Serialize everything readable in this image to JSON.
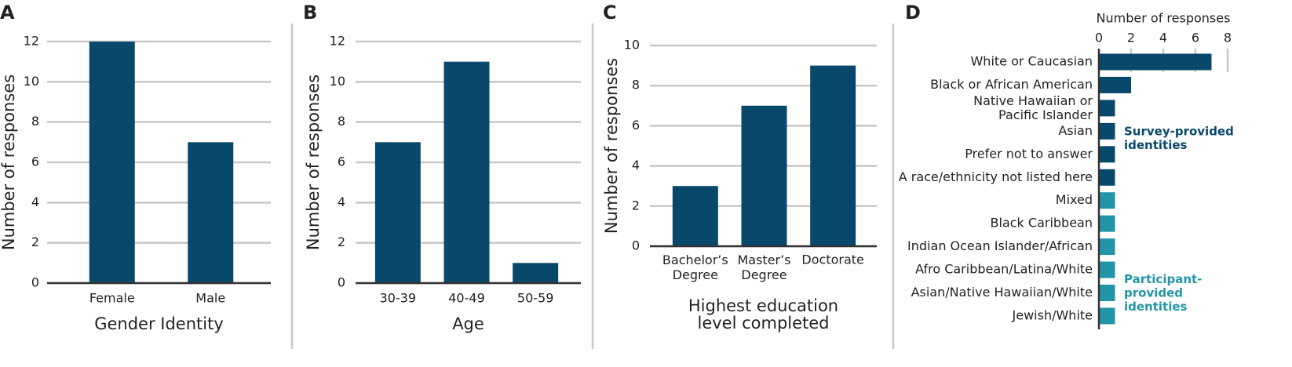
{
  "chart_data": [
    {
      "type": "bar",
      "panel": "A",
      "categories": [
        "Female",
        "Male"
      ],
      "values": [
        12,
        7
      ],
      "color": "#08486a",
      "ylim": [
        0,
        12
      ],
      "yticks": [
        0,
        2,
        4,
        6,
        8,
        10,
        12
      ],
      "ylabel": "Number of responses",
      "xlabel": "Gender Identity",
      "grid": true
    },
    {
      "type": "bar",
      "panel": "B",
      "categories": [
        "30-39",
        "40-49",
        "50-59"
      ],
      "values": [
        7,
        11,
        1
      ],
      "color": "#08486a",
      "ylim": [
        0,
        12
      ],
      "yticks": [
        0,
        2,
        4,
        6,
        8,
        10,
        12
      ],
      "ylabel": "Number of responses",
      "xlabel": "Age",
      "grid": true
    },
    {
      "type": "bar",
      "panel": "C",
      "categories": [
        "Bachelor’s\nDegree",
        "Master’s\nDegree",
        "Doctorate"
      ],
      "values": [
        3,
        7,
        9
      ],
      "color": "#08486a",
      "ylim": [
        0,
        10
      ],
      "yticks": [
        0,
        2,
        4,
        6,
        8,
        10
      ],
      "ylabel": "Number of responses",
      "xlabel": "Highest education\nlevel completed",
      "grid": true
    },
    {
      "type": "barh",
      "panel": "D",
      "xlabel": "Number of responses",
      "xlim": [
        0,
        8
      ],
      "xticks": [
        0,
        2,
        4,
        6,
        8
      ],
      "categories": [
        "White or Caucasian",
        "Black or African American",
        "Native Hawaiian or\nPacific Islander",
        "Asian",
        "Prefer not to answer",
        "A race/ethnicity not listed here",
        "Mixed",
        "Black Caribbean",
        "Indian Ocean Islander/African",
        "Afro Caribbean/Latina/White",
        "Asian/Native Hawaiian/White",
        "Jewish/White"
      ],
      "series": [
        {
          "name": "Survey-provided\nidentities",
          "color": "#08486a",
          "values": [
            7,
            2,
            1,
            1,
            1,
            1,
            null,
            null,
            null,
            null,
            null,
            null
          ]
        },
        {
          "name": "Participant-\nprovided\nidentities",
          "color": "#2296a8",
          "values": [
            null,
            null,
            null,
            null,
            null,
            null,
            1,
            1,
            1,
            1,
            1,
            1
          ]
        }
      ]
    }
  ]
}
